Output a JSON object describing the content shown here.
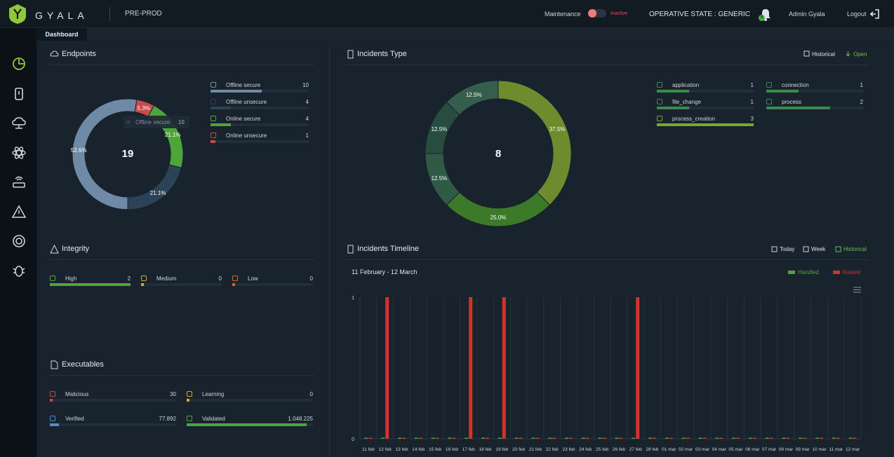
{
  "header": {
    "brand": "GYALA",
    "environment": "PRE-PROD",
    "maintenance_label": "Maintenance",
    "maintenance_state": "Inactive",
    "operative_state": "OPERATIVE STATE : GENERIC",
    "notifications_count": "8",
    "user": "Admin Gyala",
    "logout": "Logout"
  },
  "tabs": [
    {
      "label": "Dashboard"
    }
  ],
  "colors": {
    "green": "#4ea53a",
    "red": "#d9534f",
    "accent": "#6cc04a",
    "slate": "#6f8aa6"
  },
  "endpoints": {
    "title": "Endpoints",
    "total": "19",
    "tooltip_label": "Offline secure",
    "tooltip_value": "10",
    "slices": [
      {
        "label": "52.6%",
        "value": 10,
        "color": "#6f8aa6"
      },
      {
        "label": "5.3%",
        "value": 1,
        "color": "#c94a4a"
      },
      {
        "label": "21.1%",
        "value": 4,
        "color": "#4ea53a"
      },
      {
        "label": "21.1%",
        "value": 4,
        "color": "#2c4257"
      }
    ],
    "legend": [
      {
        "label": "Offline secure",
        "value": "10",
        "frac": 0.52,
        "color": "#6f8aa6"
      },
      {
        "label": "Offline unsecure",
        "value": "4",
        "frac": 0.21,
        "color": "#2c4257"
      },
      {
        "label": "Online secure",
        "value": "4",
        "frac": 0.21,
        "color": "#4ea53a"
      },
      {
        "label": "Online unsecure",
        "value": "1",
        "frac": 0.05,
        "color": "#c94a4a"
      }
    ]
  },
  "integrity": {
    "title": "Integrity",
    "items": [
      {
        "label": "High",
        "value": "2",
        "frac": 1.0,
        "color": "#4ea53a"
      },
      {
        "label": "Medium",
        "value": "0",
        "frac": 0.02,
        "color": "#e0a526"
      },
      {
        "label": "Low",
        "value": "0",
        "frac": 0.02,
        "color": "#e0622b"
      }
    ]
  },
  "executables": {
    "title": "Executables",
    "items": [
      {
        "label": "Malicious",
        "value": "30",
        "frac": 0.02,
        "color": "#c94a4a"
      },
      {
        "label": "Learning",
        "value": "0",
        "frac": 0.02,
        "color": "#e0a526"
      },
      {
        "label": "Verified",
        "value": "77.892",
        "frac": 0.07,
        "color": "#4a8ed0"
      },
      {
        "label": "Validated",
        "value": "1.048.225",
        "frac": 0.95,
        "color": "#4ea53a"
      }
    ]
  },
  "incidents_type": {
    "title": "Incidents Type",
    "historical": "Historical",
    "open": "Open",
    "total": "8",
    "slices": [
      {
        "label": "37.5%",
        "value": 3,
        "color": "#6e8c2e"
      },
      {
        "label": "25.0%",
        "value": 2,
        "color": "#3c7a2a"
      },
      {
        "label": "12.5%",
        "value": 1,
        "color": "#2f5a46"
      },
      {
        "label": "12.5%",
        "value": 1,
        "color": "#294c40"
      },
      {
        "label": "12.5%",
        "value": 1,
        "color": "#365e4c"
      }
    ],
    "legend": [
      {
        "label": "application",
        "value": "1",
        "frac": 0.33,
        "color": "#3c8a4a"
      },
      {
        "label": "connection",
        "value": "1",
        "frac": 0.33,
        "color": "#3c8a4a"
      },
      {
        "label": "file_change",
        "value": "1",
        "frac": 0.33,
        "color": "#3c8a4a"
      },
      {
        "label": "process",
        "value": "2",
        "frac": 0.66,
        "color": "#3c8a4a"
      },
      {
        "label": "process_creation",
        "value": "3",
        "frac": 1.0,
        "color": "#7aa830"
      }
    ]
  },
  "timeline": {
    "title": "Incidents Timeline",
    "today": "Today",
    "week": "Week",
    "historical": "Historical",
    "range": "11 February - 12 March",
    "legend": [
      {
        "label": "Handled",
        "color": "#4ea53a"
      },
      {
        "label": "Raised",
        "color": "#d0342c"
      }
    ]
  },
  "chart_data": {
    "type": "bar",
    "xlabel": "",
    "ylabel": "",
    "ylim": [
      0,
      1
    ],
    "yticks": [
      "0",
      "1"
    ],
    "categories": [
      "11 feb",
      "12 feb",
      "13 feb",
      "14 feb",
      "15 feb",
      "16 feb",
      "17 feb",
      "18 feb",
      "19 feb",
      "20 feb",
      "21 feb",
      "22 feb",
      "23 feb",
      "24 feb",
      "25 feb",
      "26 feb",
      "27 feb",
      "28 feb",
      "01 mar",
      "02 mar",
      "03 mar",
      "04 mar",
      "05 mar",
      "06 mar",
      "07 mar",
      "08 mar",
      "09 mar",
      "10 mar",
      "11 mar",
      "12 mar"
    ],
    "series": [
      {
        "name": "Handled",
        "values": [
          0,
          0,
          0,
          0,
          0,
          0,
          0,
          0,
          0,
          0,
          0,
          0,
          0,
          0,
          0,
          0,
          0,
          0,
          0,
          0,
          0,
          0,
          0,
          0,
          0,
          0,
          0,
          0,
          0,
          0
        ]
      },
      {
        "name": "Raised",
        "values": [
          0,
          1,
          0,
          0,
          0,
          0,
          1,
          0,
          1,
          0,
          0,
          0,
          0,
          0,
          0,
          0,
          1,
          0,
          0,
          0,
          0,
          0,
          0,
          0,
          0,
          0,
          0,
          0,
          0,
          0
        ]
      }
    ]
  }
}
